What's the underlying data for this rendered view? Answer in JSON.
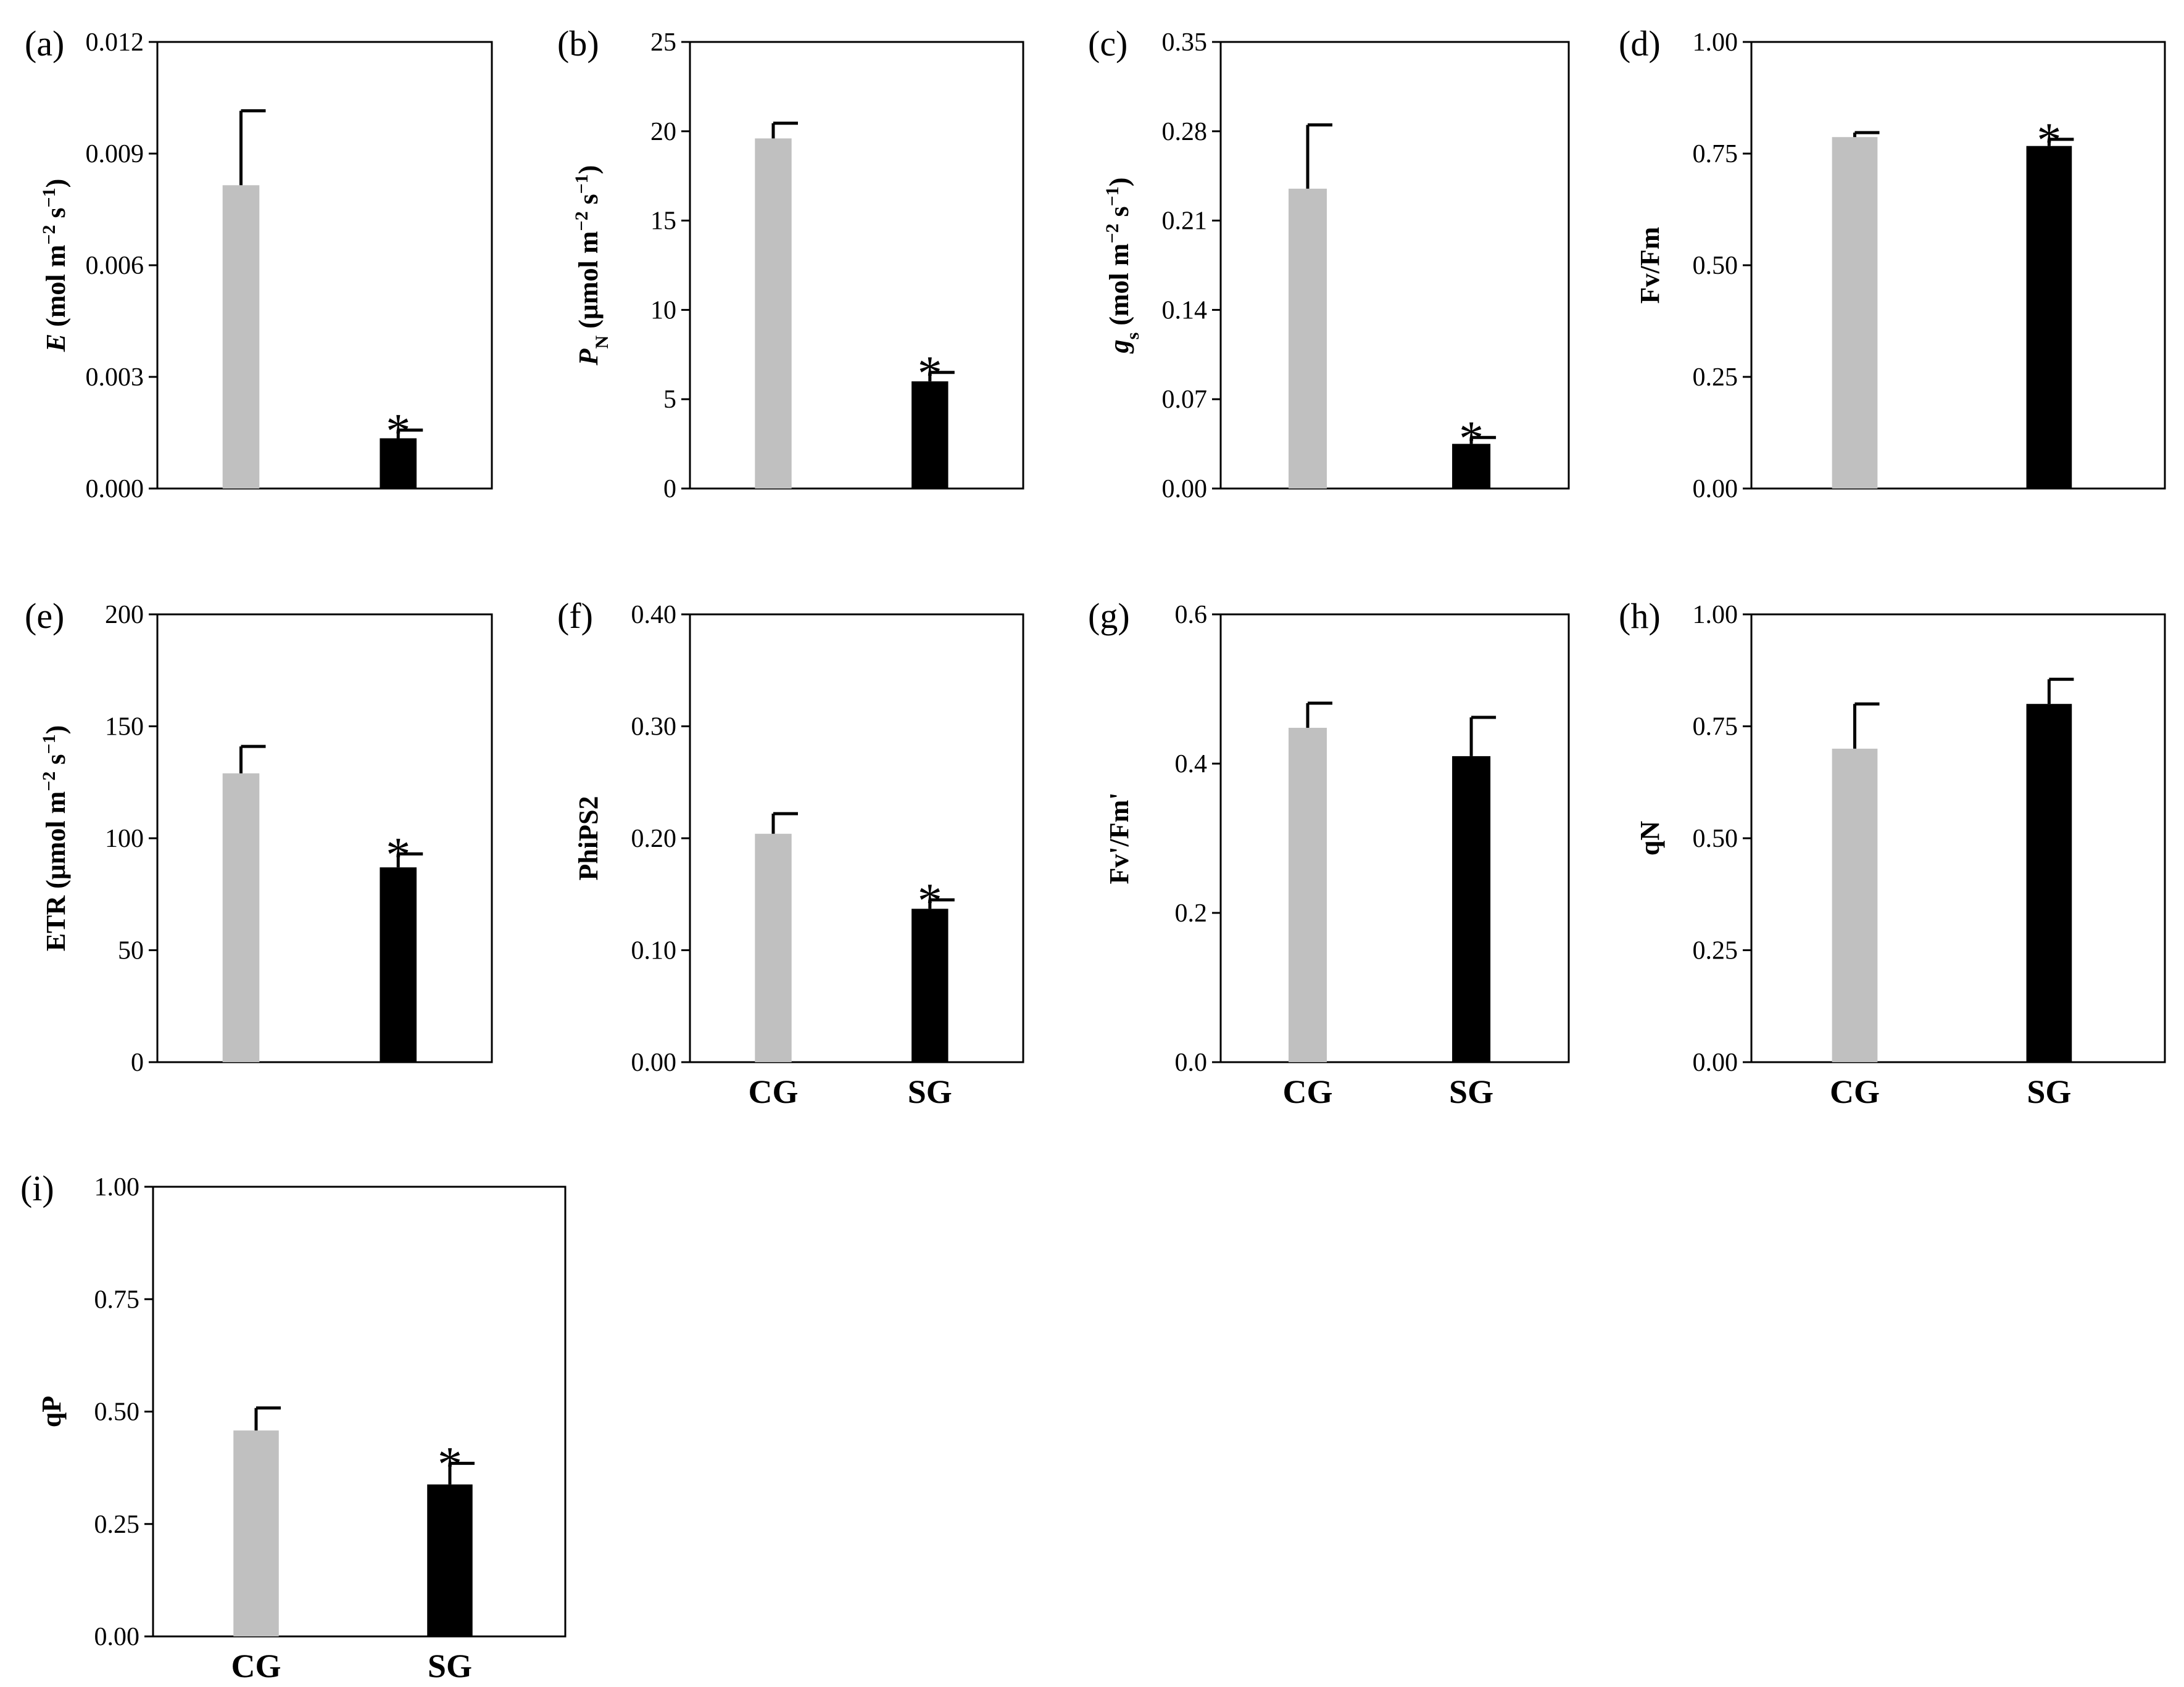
{
  "colors": {
    "CG": "#c0c0c0",
    "SG": "#000000",
    "axis": "#000000"
  },
  "chart_data": [
    {
      "label": "(a)",
      "type": "bar",
      "ylabel_parts": [
        {
          "t": "E",
          "i": true
        },
        {
          "t": " (mol m"
        },
        {
          "t": "−2",
          "sup": true
        },
        {
          "t": " s"
        },
        {
          "t": "−1",
          "sup": true
        },
        {
          "t": ")"
        }
      ],
      "ylim": [
        0,
        0.012
      ],
      "ticks": [
        "0.000",
        "0.003",
        "0.006",
        "0.009",
        "0.012"
      ],
      "categories": [
        "CG",
        "SG"
      ],
      "show_categories": false,
      "values": [
        0.00815,
        0.00135
      ],
      "errors": [
        0.002,
        0.00022
      ],
      "significant": [
        false,
        true
      ],
      "sig_marker": "*"
    },
    {
      "label": "(b)",
      "type": "bar",
      "ylabel_parts": [
        {
          "t": "P",
          "i": true
        },
        {
          "t": "N",
          "sub": true
        },
        {
          "t": " (μmol m"
        },
        {
          "t": "−2",
          "sup": true
        },
        {
          "t": " s"
        },
        {
          "t": "−1",
          "sup": true
        },
        {
          "t": ")"
        }
      ],
      "ylim": [
        0,
        25
      ],
      "ticks": [
        "0",
        "5",
        "10",
        "15",
        "20",
        "25"
      ],
      "categories": [
        "CG",
        "SG"
      ],
      "show_categories": false,
      "values": [
        19.6,
        6.0
      ],
      "errors": [
        0.85,
        0.5
      ],
      "significant": [
        false,
        true
      ],
      "sig_marker": "*"
    },
    {
      "label": "(c)",
      "type": "bar",
      "ylabel_parts": [
        {
          "t": "g",
          "i": true
        },
        {
          "t": "s",
          "sub": true
        },
        {
          "t": " (mol m"
        },
        {
          "t": "−2",
          "sup": true
        },
        {
          "t": " s"
        },
        {
          "t": "−1",
          "sup": true
        },
        {
          "t": ")"
        }
      ],
      "ylim": [
        0,
        0.35
      ],
      "ticks": [
        "0.00",
        "0.07",
        "0.14",
        "0.21",
        "0.28",
        "0.35"
      ],
      "categories": [
        "CG",
        "SG"
      ],
      "show_categories": false,
      "values": [
        0.235,
        0.035
      ],
      "errors": [
        0.05,
        0.005
      ],
      "significant": [
        false,
        true
      ],
      "sig_marker": "*"
    },
    {
      "label": "(d)",
      "type": "bar",
      "ylabel_parts": [
        {
          "t": "Fv/Fm"
        }
      ],
      "ylim": [
        0,
        1.0
      ],
      "ticks": [
        "0.00",
        "0.25",
        "0.50",
        "0.75",
        "1.00"
      ],
      "categories": [
        "CG",
        "SG"
      ],
      "show_categories": false,
      "values": [
        0.787,
        0.767
      ],
      "errors": [
        0.01,
        0.015
      ],
      "significant": [
        false,
        true
      ],
      "sig_marker": "*"
    },
    {
      "label": "(e)",
      "type": "bar",
      "ylabel_parts": [
        {
          "t": "ETR (μmol m"
        },
        {
          "t": "−2",
          "sup": true
        },
        {
          "t": " s"
        },
        {
          "t": "−1",
          "sup": true
        },
        {
          "t": ")"
        }
      ],
      "ylim": [
        0,
        200
      ],
      "ticks": [
        "0",
        "50",
        "100",
        "150",
        "200"
      ],
      "categories": [
        "CG",
        "SG"
      ],
      "show_categories": false,
      "values": [
        129,
        87
      ],
      "errors": [
        12,
        6
      ],
      "significant": [
        false,
        true
      ],
      "sig_marker": "*"
    },
    {
      "label": "(f)",
      "type": "bar",
      "ylabel_parts": [
        {
          "t": "PhiPS2"
        }
      ],
      "ylim": [
        0,
        0.4
      ],
      "ticks": [
        "0.00",
        "0.10",
        "0.20",
        "0.30",
        "0.40"
      ],
      "categories": [
        "CG",
        "SG"
      ],
      "show_categories": true,
      "values": [
        0.204,
        0.137
      ],
      "errors": [
        0.018,
        0.008
      ],
      "significant": [
        false,
        true
      ],
      "sig_marker": "*"
    },
    {
      "label": "(g)",
      "type": "bar",
      "ylabel_parts": [
        {
          "t": "Fv'/Fm'"
        }
      ],
      "ylim": [
        0,
        0.6
      ],
      "ticks": [
        "0.0",
        "0.2",
        "0.4",
        "0.6"
      ],
      "categories": [
        "CG",
        "SG"
      ],
      "show_categories": true,
      "values": [
        0.448,
        0.41
      ],
      "errors": [
        0.033,
        0.052
      ],
      "significant": [
        false,
        false
      ],
      "sig_marker": "*"
    },
    {
      "label": "(h)",
      "type": "bar",
      "ylabel_parts": [
        {
          "t": "qN"
        }
      ],
      "ylim": [
        0,
        1.0
      ],
      "ticks": [
        "0.00",
        "0.25",
        "0.50",
        "0.75",
        "1.00"
      ],
      "categories": [
        "CG",
        "SG"
      ],
      "show_categories": true,
      "values": [
        0.7,
        0.8
      ],
      "errors": [
        0.1,
        0.055
      ],
      "significant": [
        false,
        false
      ],
      "sig_marker": "*"
    },
    {
      "label": "(i)",
      "type": "bar",
      "ylabel_parts": [
        {
          "t": "qP"
        }
      ],
      "ylim": [
        0,
        1.0
      ],
      "ticks": [
        "0.00",
        "0.25",
        "0.50",
        "0.75",
        "1.00"
      ],
      "categories": [
        "CG",
        "SG"
      ],
      "show_categories": true,
      "values": [
        0.458,
        0.338
      ],
      "errors": [
        0.05,
        0.047
      ],
      "significant": [
        false,
        true
      ],
      "sig_marker": "*"
    }
  ]
}
